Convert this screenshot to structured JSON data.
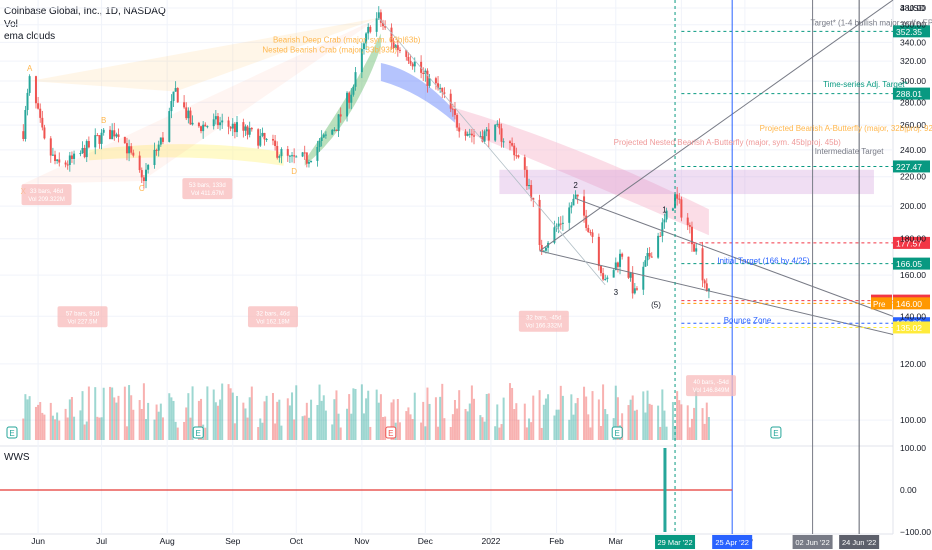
{
  "header": {
    "symbol_line": "Coinbase Global, Inc., 1D, NASDAQ",
    "indicator_1": "Vol",
    "indicator_2": "ema clouds"
  },
  "lower_pane": {
    "label": "WWS",
    "ticks": [
      "100.00",
      "0.00",
      "−100.00"
    ]
  },
  "chart_data": {
    "type": "candlestick",
    "x_ticks": [
      "Jun",
      "Jul",
      "Aug",
      "Sep",
      "Oct",
      "Nov",
      "Dec",
      "2022",
      "Feb",
      "Mar",
      "Apr",
      "May"
    ],
    "y_ticks": [
      100,
      120,
      140,
      160,
      180,
      200,
      220,
      240,
      260,
      280,
      300,
      320,
      340,
      360,
      380
    ],
    "y_log_axis_top_label": "4 USD",
    "ylim": [
      95,
      390
    ],
    "price_path": [
      [
        "2021-05-25",
        255
      ],
      [
        "2021-05-28",
        300
      ],
      [
        "2021-06-04",
        245
      ],
      [
        "2021-06-10",
        228
      ],
      [
        "2021-06-18",
        232
      ],
      [
        "2021-06-30",
        250
      ],
      [
        "2021-07-09",
        256
      ],
      [
        "2021-07-20",
        217
      ],
      [
        "2021-07-30",
        250
      ],
      [
        "2021-08-05",
        290
      ],
      [
        "2021-08-13",
        258
      ],
      [
        "2021-08-25",
        262
      ],
      [
        "2021-09-02",
        258
      ],
      [
        "2021-09-15",
        248
      ],
      [
        "2021-09-28",
        232
      ],
      [
        "2021-10-06",
        233
      ],
      [
        "2021-10-20",
        260
      ],
      [
        "2021-10-28",
        295
      ],
      [
        "2021-11-05",
        360
      ],
      [
        "2021-11-09",
        368
      ],
      [
        "2021-11-15",
        338
      ],
      [
        "2021-11-22",
        330
      ],
      [
        "2021-11-30",
        305
      ],
      [
        "2021-12-08",
        290
      ],
      [
        "2021-12-16",
        262
      ],
      [
        "2021-12-24",
        251
      ],
      [
        "2022-01-04",
        255
      ],
      [
        "2022-01-12",
        240
      ],
      [
        "2022-01-20",
        210
      ],
      [
        "2022-01-24",
        173
      ],
      [
        "2022-02-04",
        192
      ],
      [
        "2022-02-10",
        205
      ],
      [
        "2022-02-18",
        182
      ],
      [
        "2022-02-24",
        155
      ],
      [
        "2022-03-04",
        172
      ],
      [
        "2022-03-10",
        150
      ],
      [
        "2022-03-16",
        168
      ],
      [
        "2022-03-24",
        190
      ],
      [
        "2022-03-29",
        206
      ],
      [
        "2022-04-05",
        185
      ],
      [
        "2022-04-12",
        157
      ],
      [
        "2022-04-14",
        150
      ]
    ],
    "horizontal_levels": [
      {
        "label": "352.35",
        "value": 352.35,
        "color": "#089981"
      },
      {
        "label": "288.01",
        "value": 288.01,
        "color": "#089981"
      },
      {
        "label": "227.47",
        "value": 227.47,
        "color": "#089981"
      },
      {
        "label": "177.57",
        "value": 177.57,
        "color": "#f23645"
      },
      {
        "label": "166.05",
        "value": 166.05,
        "color": "#089981"
      },
      {
        "label": "147.29",
        "value": 147.29,
        "color": "#f23645"
      },
      {
        "label": "146.00",
        "value": 146.0,
        "color": "#ff9800"
      },
      {
        "label": "136.89",
        "value": 136.89,
        "color": "#2962ff"
      },
      {
        "label": "135.02",
        "value": 135.02,
        "color": "#ffeb3b"
      }
    ],
    "price_tags": [
      {
        "text": "COIN",
        "value": 147.29,
        "color": "#f23645"
      },
      {
        "text": "Pre",
        "value": 146.0,
        "color": "#ff9800"
      }
    ],
    "annotations": [
      {
        "text": "Bearish Deep Crab (major, sym. 63b|63b)",
        "color": "#ffb74d"
      },
      {
        "text": "Nested Bearish Crab (major, 33b|93b)",
        "color": "#ffb74d"
      },
      {
        "text": "Target* (1-4 bullish major wolfe EPA @ ET...",
        "color": "#787b86"
      },
      {
        "text": "Time-series Adj. Target*",
        "color": "#089981"
      },
      {
        "text": "Projected Bearish A-Butterfly (major, 32b|proj. 92b)",
        "color": "#ffb74d"
      },
      {
        "text": "Projected Nested Bearish A-Butterfly (major, sym. 45b|proj. 45b)",
        "color": "#ef9a9a"
      },
      {
        "text": "Intermediate Target",
        "color": "#787b86"
      },
      {
        "text": "Initial Target (166 by 4/25)",
        "color": "#2962ff"
      },
      {
        "text": "Bounce Zone",
        "color": "#2962ff"
      },
      {
        "text": "A",
        "color": "#ffb74d"
      },
      {
        "text": "B",
        "color": "#ffb74d"
      },
      {
        "text": "C",
        "color": "#ffb74d"
      },
      {
        "text": "D",
        "color": "#ffb74d"
      },
      {
        "text": "X",
        "color": "#ffb74d"
      },
      {
        "text": "1",
        "color": "#131722"
      },
      {
        "text": "2",
        "color": "#131722"
      },
      {
        "text": "3",
        "color": "#131722"
      },
      {
        "text": "(5)",
        "color": "#131722"
      }
    ],
    "measure_labels": [
      {
        "line1": "33 bars, 46d",
        "line2": "Vol 209.322M"
      },
      {
        "line1": "53 bars, 133d",
        "line2": "Vol 411.67M"
      },
      {
        "line1": "57 bars, 91d",
        "line2": "Vol 227.5M"
      },
      {
        "line1": "32 bars, 46d",
        "line2": "Vol 162.18M"
      },
      {
        "line1": "32 bars, -45d",
        "line2": "Vol 166.332M"
      },
      {
        "line1": "40 bars, -54d",
        "line2": "Vol 146.849M"
      }
    ],
    "earnings_markers": [
      "E",
      "E",
      "E",
      "E",
      "E"
    ],
    "date_markers": [
      {
        "label": "29 Mar '22",
        "color": "#089981"
      },
      {
        "label": "25 Apr '22",
        "color": "#2962ff"
      },
      {
        "label": "02 Jun '22",
        "color": "#787b86"
      },
      {
        "label": "24 Jun '22",
        "color": "#5d606b"
      }
    ]
  }
}
